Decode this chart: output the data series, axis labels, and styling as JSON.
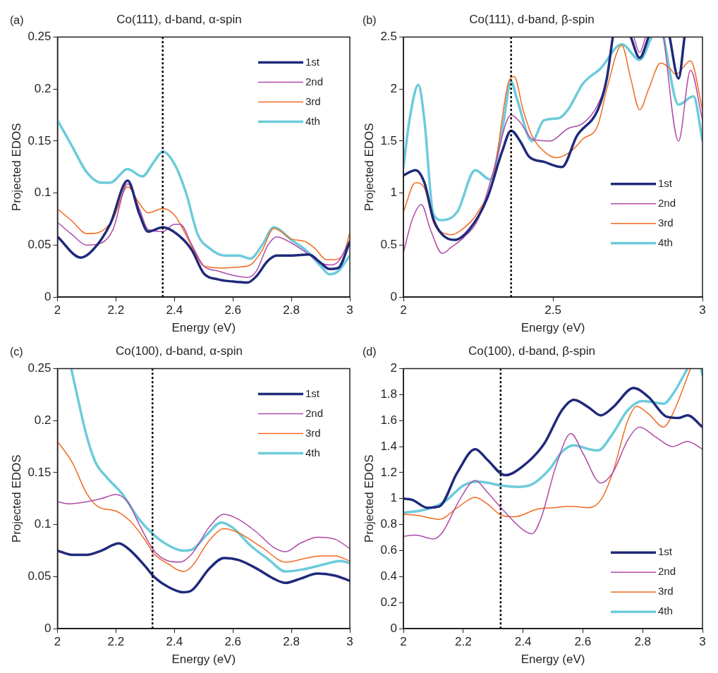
{
  "chart_data": [
    {
      "type": "line",
      "title": "Co(111), d-band, α-spin",
      "xlabel": "Energy (eV)",
      "ylabel": "Projected EDOS",
      "annotations": [
        "(a)"
      ],
      "xlim": [
        2,
        3
      ],
      "xticks": [
        2,
        2.2,
        2.4,
        2.6,
        2.8,
        3
      ],
      "ylim": [
        0,
        0.25
      ],
      "yticks": [
        0,
        0.05,
        0.1,
        0.15,
        0.2,
        0.25
      ],
      "grid": false,
      "legend": "top right",
      "ref_lines": [
        {
          "axis": "x",
          "value": 2.36,
          "color": "#000000",
          "line_style": "dotted"
        }
      ],
      "series": [
        {
          "name": "1st",
          "color": "#1f2a7a",
          "x": [
            2.0,
            2.08,
            2.12,
            2.18,
            2.24,
            2.28,
            2.31,
            2.36,
            2.42,
            2.46,
            2.5,
            2.55,
            2.6,
            2.65,
            2.68,
            2.72,
            2.75,
            2.8,
            2.86,
            2.9,
            2.93,
            2.96,
            3.0
          ],
          "values": [
            0.058,
            0.038,
            0.045,
            0.07,
            0.112,
            0.08,
            0.063,
            0.067,
            0.058,
            0.045,
            0.023,
            0.017,
            0.015,
            0.014,
            0.02,
            0.035,
            0.04,
            0.04,
            0.041,
            0.033,
            0.027,
            0.028,
            0.053
          ]
        },
        {
          "name": "2nd",
          "color": "#b04aa8",
          "x": [
            2.0,
            2.05,
            2.1,
            2.15,
            2.19,
            2.24,
            2.28,
            2.31,
            2.36,
            2.4,
            2.42,
            2.46,
            2.5,
            2.55,
            2.6,
            2.65,
            2.68,
            2.72,
            2.75,
            2.8,
            2.85,
            2.9,
            2.93,
            2.96,
            3.0
          ],
          "values": [
            0.072,
            0.06,
            0.05,
            0.052,
            0.065,
            0.109,
            0.085,
            0.065,
            0.063,
            0.07,
            0.07,
            0.05,
            0.03,
            0.025,
            0.021,
            0.019,
            0.025,
            0.05,
            0.058,
            0.052,
            0.043,
            0.033,
            0.031,
            0.034,
            0.055
          ]
        },
        {
          "name": "3rd",
          "color": "#f26a21",
          "x": [
            2.0,
            2.05,
            2.1,
            2.14,
            2.19,
            2.24,
            2.28,
            2.31,
            2.36,
            2.4,
            2.43,
            2.47,
            2.5,
            2.57,
            2.62,
            2.66,
            2.7,
            2.74,
            2.8,
            2.85,
            2.88,
            2.92,
            2.95,
            2.98,
            3.0
          ],
          "values": [
            0.085,
            0.073,
            0.061,
            0.062,
            0.075,
            0.106,
            0.09,
            0.081,
            0.085,
            0.079,
            0.065,
            0.043,
            0.03,
            0.028,
            0.029,
            0.031,
            0.045,
            0.066,
            0.056,
            0.053,
            0.047,
            0.036,
            0.036,
            0.043,
            0.062
          ]
        },
        {
          "name": "4th",
          "color": "#6ccbdb",
          "x": [
            2.0,
            2.05,
            2.1,
            2.15,
            2.18,
            2.24,
            2.29,
            2.33,
            2.36,
            2.4,
            2.44,
            2.48,
            2.52,
            2.57,
            2.62,
            2.66,
            2.7,
            2.74,
            2.8,
            2.85,
            2.9,
            2.93,
            2.96,
            3.0
          ],
          "values": [
            0.17,
            0.145,
            0.12,
            0.11,
            0.11,
            0.123,
            0.116,
            0.13,
            0.14,
            0.128,
            0.1,
            0.06,
            0.047,
            0.04,
            0.04,
            0.037,
            0.05,
            0.067,
            0.055,
            0.045,
            0.03,
            0.022,
            0.025,
            0.04
          ]
        }
      ]
    },
    {
      "type": "line",
      "title": "Co(111), d-band, β-spin",
      "xlabel": "Energy (eV)",
      "ylabel": "Projected EDOS",
      "annotations": [
        "(b)"
      ],
      "xlim": [
        2,
        3
      ],
      "xticks": [
        2,
        2.5,
        3
      ],
      "ylim": [
        0,
        2.5
      ],
      "yticks": [
        0,
        0.5,
        1,
        1.5,
        2,
        2.5
      ],
      "grid": false,
      "legend": "right",
      "ref_lines": [
        {
          "axis": "x",
          "value": 2.36,
          "color": "#000000",
          "line_style": "dotted"
        }
      ],
      "series": [
        {
          "name": "1st",
          "color": "#1f2a7a",
          "x": [
            2.0,
            2.04,
            2.07,
            2.1,
            2.13,
            2.17,
            2.22,
            2.28,
            2.33,
            2.36,
            2.39,
            2.42,
            2.47,
            2.53,
            2.58,
            2.65,
            2.68,
            2.7,
            2.72,
            2.76,
            2.79,
            2.82,
            2.85,
            2.89,
            2.92,
            2.94
          ],
          "values": [
            1.17,
            1.22,
            1.1,
            0.75,
            0.6,
            0.55,
            0.65,
            0.95,
            1.4,
            1.6,
            1.5,
            1.35,
            1.3,
            1.25,
            1.55,
            1.8,
            2.1,
            2.5,
            null,
            2.5,
            2.3,
            2.5,
            null,
            2.5,
            2.1,
            2.5
          ]
        },
        {
          "name": "2nd",
          "color": "#b04aa8",
          "x": [
            2.0,
            2.03,
            2.06,
            2.09,
            2.13,
            2.16,
            2.2,
            2.25,
            2.3,
            2.36,
            2.39,
            2.43,
            2.49,
            2.55,
            2.6,
            2.65,
            2.68,
            2.7,
            2.72,
            2.77,
            2.79,
            2.81,
            2.83,
            2.87,
            2.92,
            2.96,
            3.0
          ],
          "values": [
            0.43,
            0.75,
            0.89,
            0.65,
            0.42,
            0.48,
            0.57,
            0.75,
            1.2,
            1.75,
            1.68,
            1.52,
            1.5,
            1.62,
            1.67,
            1.85,
            2.1,
            2.5,
            null,
            2.5,
            2.35,
            2.5,
            null,
            2.5,
            1.5,
            2.18,
            1.7
          ]
        },
        {
          "name": "3rd",
          "color": "#f26a21",
          "x": [
            2.0,
            2.04,
            2.07,
            2.1,
            2.13,
            2.16,
            2.2,
            2.25,
            2.3,
            2.35,
            2.37,
            2.4,
            2.43,
            2.47,
            2.51,
            2.56,
            2.6,
            2.65,
            2.68,
            2.73,
            2.76,
            2.79,
            2.82,
            2.86,
            2.89,
            2.91,
            2.96,
            3.0
          ],
          "values": [
            0.82,
            1.1,
            1.05,
            0.72,
            0.62,
            0.6,
            0.66,
            0.82,
            1.15,
            2.05,
            2.12,
            1.8,
            1.55,
            1.4,
            1.34,
            1.4,
            1.52,
            1.65,
            2.0,
            2.42,
            2.1,
            1.8,
            2.0,
            2.25,
            2.2,
            2.14,
            2.27,
            1.8
          ]
        },
        {
          "name": "4th",
          "color": "#6ccbdb",
          "x": [
            2.0,
            2.02,
            2.05,
            2.07,
            2.1,
            2.13,
            2.18,
            2.24,
            2.29,
            2.33,
            2.36,
            2.38,
            2.43,
            2.47,
            2.52,
            2.55,
            2.6,
            2.66,
            2.73,
            2.79,
            2.83,
            2.85,
            2.87,
            2.92,
            2.97,
            3.0
          ],
          "values": [
            1.25,
            1.7,
            2.04,
            1.7,
            0.8,
            0.74,
            0.82,
            1.22,
            1.13,
            1.6,
            2.07,
            1.9,
            1.5,
            1.7,
            1.72,
            1.8,
            2.05,
            2.2,
            2.43,
            2.28,
            2.5,
            null,
            2.5,
            1.85,
            1.93,
            1.5
          ]
        }
      ]
    },
    {
      "type": "line",
      "title": "Co(100), d-band, α-spin",
      "xlabel": "Energy (eV)",
      "ylabel": "Projected EDOS",
      "annotations": [
        "(c)"
      ],
      "xlim": [
        2,
        3
      ],
      "xticks": [
        2,
        2.2,
        2.4,
        2.6,
        2.8,
        3
      ],
      "ylim": [
        0,
        0.25
      ],
      "yticks": [
        0,
        0.05,
        0.1,
        0.15,
        0.2,
        0.25
      ],
      "grid": false,
      "legend": "top right",
      "ref_lines": [
        {
          "axis": "x",
          "value": 2.325,
          "color": "#000000",
          "line_style": "dotted"
        }
      ],
      "series": [
        {
          "name": "1st",
          "color": "#1f2a7a",
          "x": [
            2.0,
            2.05,
            2.1,
            2.15,
            2.21,
            2.25,
            2.3,
            2.33,
            2.38,
            2.43,
            2.46,
            2.52,
            2.57,
            2.62,
            2.68,
            2.74,
            2.78,
            2.83,
            2.89,
            2.95,
            3.0
          ],
          "values": [
            0.075,
            0.071,
            0.071,
            0.075,
            0.082,
            0.075,
            0.06,
            0.05,
            0.04,
            0.035,
            0.037,
            0.058,
            0.068,
            0.066,
            0.058,
            0.048,
            0.044,
            0.048,
            0.053,
            0.051,
            0.046
          ]
        },
        {
          "name": "2nd",
          "color": "#b04aa8",
          "x": [
            2.0,
            2.04,
            2.1,
            2.15,
            2.2,
            2.24,
            2.28,
            2.33,
            2.38,
            2.42,
            2.46,
            2.52,
            2.57,
            2.62,
            2.68,
            2.74,
            2.78,
            2.83,
            2.89,
            2.95,
            3.0
          ],
          "values": [
            0.122,
            0.12,
            0.122,
            0.125,
            0.129,
            0.122,
            0.1,
            0.075,
            0.065,
            0.064,
            0.072,
            0.098,
            0.11,
            0.105,
            0.093,
            0.078,
            0.074,
            0.082,
            0.088,
            0.086,
            0.077
          ]
        },
        {
          "name": "3rd",
          "color": "#f26a21",
          "x": [
            2.0,
            2.05,
            2.1,
            2.14,
            2.2,
            2.25,
            2.3,
            2.33,
            2.38,
            2.43,
            2.46,
            2.52,
            2.57,
            2.62,
            2.7,
            2.78,
            2.84,
            2.9,
            2.95,
            3.0
          ],
          "values": [
            0.18,
            0.16,
            0.13,
            0.117,
            0.113,
            0.103,
            0.085,
            0.072,
            0.062,
            0.055,
            0.06,
            0.085,
            0.096,
            0.092,
            0.078,
            0.064,
            0.067,
            0.07,
            0.07,
            0.065
          ]
        },
        {
          "name": "4th",
          "color": "#6ccbdb",
          "x": [
            2.047,
            2.1,
            2.13,
            2.17,
            2.22,
            2.28,
            2.33,
            2.38,
            2.43,
            2.46,
            2.51,
            2.56,
            2.6,
            2.66,
            2.72,
            2.78,
            2.84,
            2.9,
            2.97,
            3.0
          ],
          "values": [
            0.25,
            0.185,
            0.16,
            0.145,
            0.13,
            0.105,
            0.09,
            0.08,
            0.075,
            0.076,
            0.09,
            0.102,
            0.097,
            0.08,
            0.067,
            0.055,
            0.057,
            0.061,
            0.065,
            0.063
          ]
        }
      ]
    },
    {
      "type": "line",
      "title": "Co(100), d-band, β-spin",
      "xlabel": "Energy (eV)",
      "ylabel": "Projected EDOS",
      "annotations": [
        "(d)"
      ],
      "xlim": [
        2,
        3
      ],
      "xticks": [
        2,
        2.2,
        2.4,
        2.6,
        2.8,
        3
      ],
      "ylim": [
        0,
        2
      ],
      "yticks": [
        0,
        0.2,
        0.4,
        0.6,
        0.8,
        1,
        1.2,
        1.4,
        1.6,
        1.8,
        2
      ],
      "grid": false,
      "legend": "bottom right",
      "ref_lines": [
        {
          "axis": "x",
          "value": 2.325,
          "color": "#000000",
          "line_style": "dotted"
        }
      ],
      "series": [
        {
          "name": "1st",
          "color": "#1f2a7a",
          "x": [
            2.0,
            2.03,
            2.08,
            2.12,
            2.18,
            2.24,
            2.28,
            2.34,
            2.4,
            2.47,
            2.53,
            2.57,
            2.62,
            2.66,
            2.7,
            2.77,
            2.82,
            2.88,
            2.92,
            2.95,
            3.0
          ],
          "values": [
            1.0,
            0.99,
            0.93,
            0.94,
            1.2,
            1.38,
            1.3,
            1.18,
            1.25,
            1.42,
            1.68,
            1.76,
            1.7,
            1.64,
            1.7,
            1.85,
            1.78,
            1.63,
            1.62,
            1.64,
            1.55
          ]
        },
        {
          "name": "2nd",
          "color": "#b04aa8",
          "x": [
            2.0,
            2.04,
            2.1,
            2.13,
            2.19,
            2.24,
            2.28,
            2.33,
            2.4,
            2.43,
            2.46,
            2.51,
            2.56,
            2.6,
            2.66,
            2.7,
            2.75,
            2.79,
            2.84,
            2.9,
            2.95,
            3.0
          ],
          "values": [
            0.71,
            0.72,
            0.69,
            0.74,
            1.0,
            1.14,
            1.05,
            0.92,
            0.76,
            0.73,
            0.85,
            1.25,
            1.5,
            1.35,
            1.12,
            1.2,
            1.45,
            1.55,
            1.48,
            1.4,
            1.44,
            1.38
          ]
        },
        {
          "name": "3rd",
          "color": "#f26a21",
          "x": [
            2.0,
            2.05,
            2.12,
            2.18,
            2.24,
            2.28,
            2.33,
            2.37,
            2.45,
            2.5,
            2.56,
            2.62,
            2.66,
            2.7,
            2.75,
            2.78,
            2.82,
            2.87,
            2.9,
            2.96
          ],
          "values": [
            0.88,
            0.87,
            0.84,
            0.93,
            1.01,
            0.96,
            0.87,
            0.86,
            0.92,
            0.93,
            0.94,
            0.93,
            0.99,
            1.2,
            1.6,
            1.71,
            1.65,
            1.55,
            1.65,
            2.0
          ]
        },
        {
          "name": "4th",
          "color": "#6ccbdb",
          "x": [
            2.0,
            2.08,
            2.14,
            2.2,
            2.25,
            2.33,
            2.38,
            2.43,
            2.49,
            2.53,
            2.57,
            2.62,
            2.65,
            2.7,
            2.75,
            2.8,
            2.87,
            2.9,
            2.95,
            2.97,
            2.995,
            3.0
          ],
          "values": [
            0.89,
            0.92,
            0.98,
            1.1,
            1.13,
            1.1,
            1.09,
            1.11,
            1.23,
            1.36,
            1.41,
            1.38,
            1.37,
            1.5,
            1.68,
            1.75,
            1.73,
            1.8,
            2.0,
            null,
            2.0,
            1.95
          ]
        }
      ]
    }
  ]
}
